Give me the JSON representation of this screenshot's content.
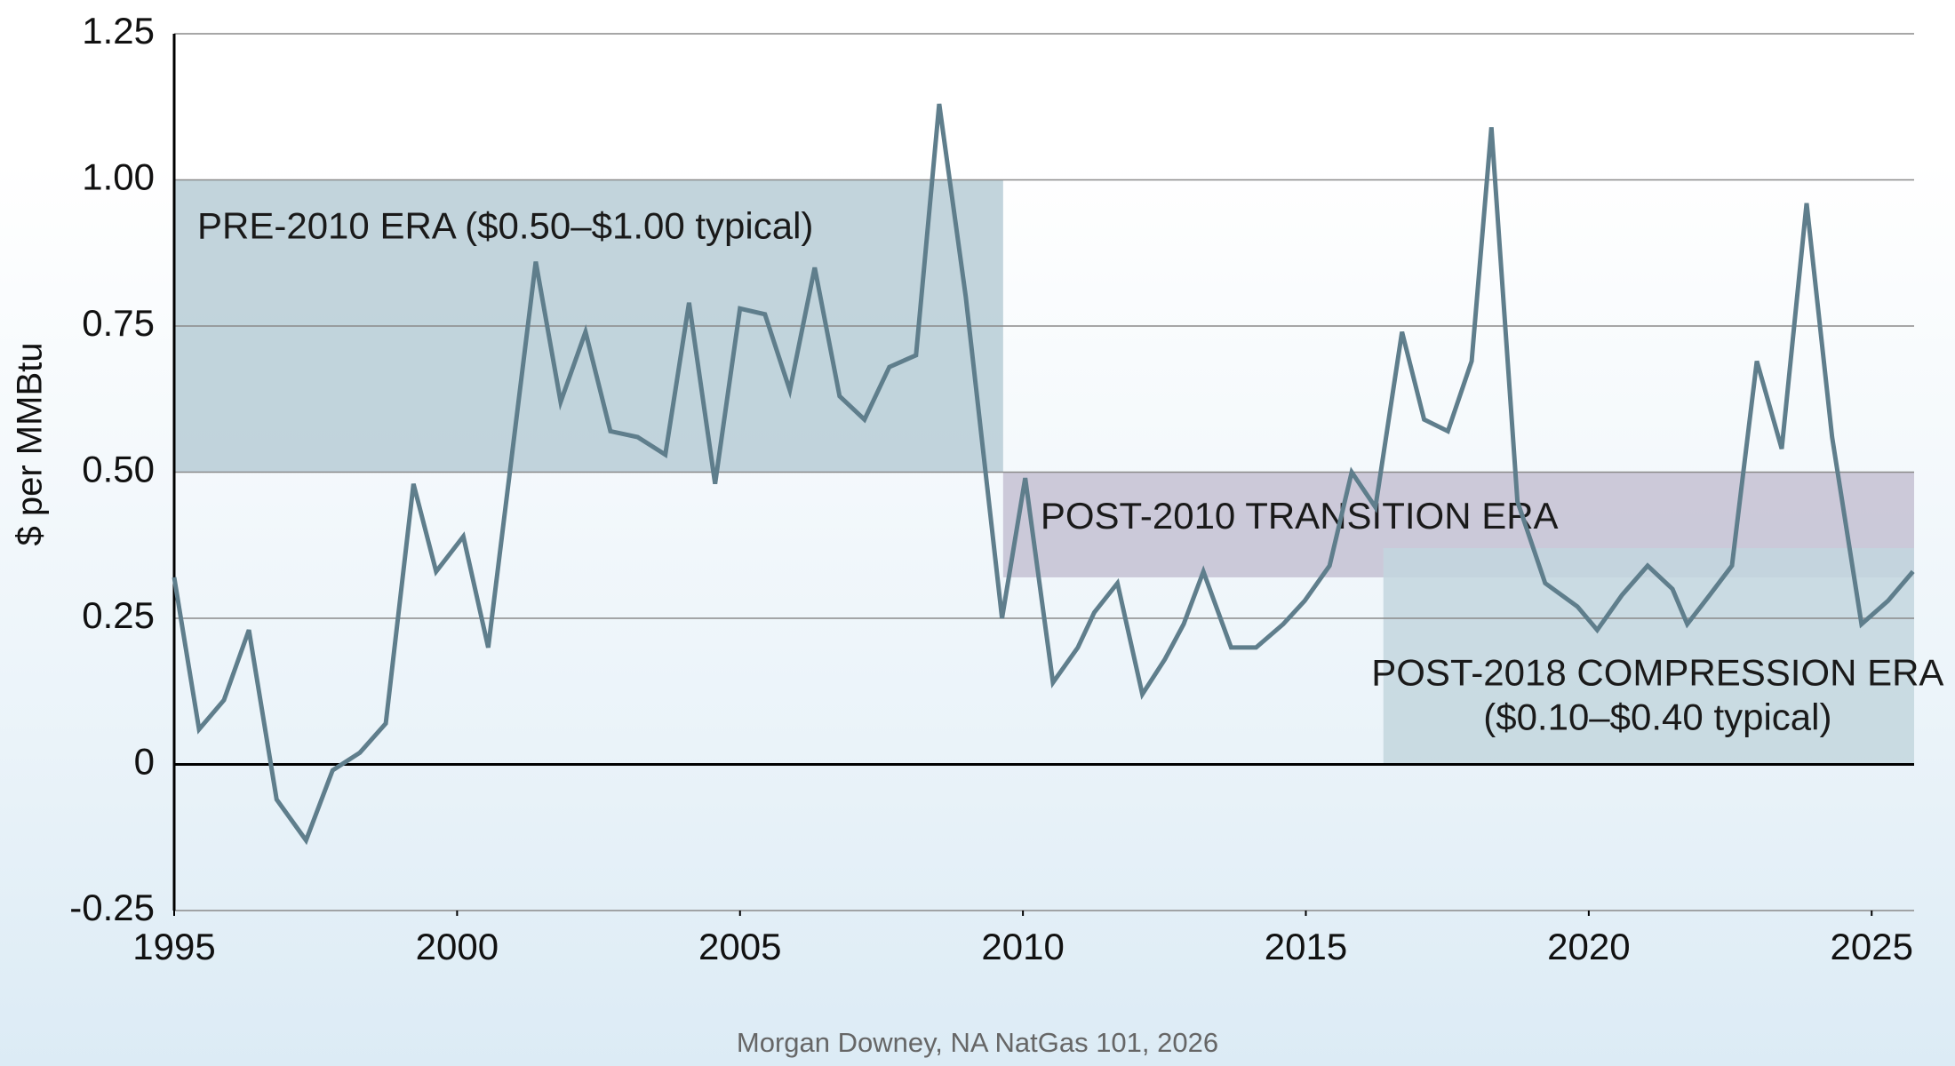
{
  "chart_data": {
    "type": "line",
    "ylabel": "$ per MMBtu",
    "source": "Morgan Downey, NA NatGas 101, 2026",
    "xlim": [
      1995,
      2025.75
    ],
    "xticks": [
      1995,
      2000,
      2005,
      2010,
      2015,
      2020,
      2025
    ],
    "ylim": [
      -0.25,
      1.25
    ],
    "yticks": [
      1.25,
      {
        "value": 1,
        "label": "1.00"
      },
      0.75,
      {
        "value": 0.5,
        "label": "0.50"
      },
      0.25,
      0,
      -0.25
    ],
    "grid": true,
    "bands": [
      {
        "label": [
          "PRE-2010 ERA ($0.50–$1.00 typical)"
        ],
        "x": [
          1995,
          2009.65
        ],
        "y": [
          0.5,
          1
        ],
        "color": "#b7cdd6"
      },
      {
        "label": [
          "POST-2010 TRANSITION ERA"
        ],
        "x": [
          2009.65,
          2025.75
        ],
        "y": [
          0.32,
          0.5
        ],
        "color": "#c4c1d2"
      },
      {
        "label": [
          "POST-2018 COMPRESSION ERA",
          "($0.10–$0.40 typical)"
        ],
        "x": [
          2016.37,
          2025.75
        ],
        "y": [
          0,
          0.37
        ],
        "color": "#c3d6de"
      }
    ],
    "series": [
      {
        "color": "#5f7e8c",
        "x": [
          1995.0,
          1995.44,
          1995.88,
          1996.32,
          1996.81,
          1997.33,
          1997.8,
          1998.28,
          1998.74,
          1999.23,
          1999.63,
          2000.11,
          2000.55,
          2001.39,
          2001.83,
          2002.27,
          2002.71,
          2003.19,
          2003.68,
          2004.1,
          2004.56,
          2005.0,
          2005.44,
          2005.88,
          2006.32,
          2006.76,
          2007.2,
          2007.64,
          2008.11,
          2008.52,
          2008.99,
          2009.63,
          2010.04,
          2010.53,
          2010.97,
          2011.26,
          2011.67,
          2012.11,
          2012.51,
          2012.84,
          2013.19,
          2013.68,
          2014.12,
          2014.6,
          2014.98,
          2015.42,
          2015.81,
          2016.23,
          2016.7,
          2017.09,
          2017.51,
          2017.93,
          2018.28,
          2018.74,
          2019.23,
          2019.8,
          2020.15,
          2020.59,
          2021.04,
          2021.48,
          2021.74,
          2022.14,
          2022.53,
          2022.97,
          2023.41,
          2023.85,
          2024.3,
          2024.82,
          2025.29,
          2025.73
        ],
        "values": [
          0.32,
          0.06,
          0.11,
          0.23,
          -0.06,
          -0.13,
          -0.01,
          0.02,
          0.07,
          0.48,
          0.33,
          0.39,
          0.2,
          0.86,
          0.62,
          0.74,
          0.57,
          0.56,
          0.53,
          0.79,
          0.48,
          0.78,
          0.77,
          0.64,
          0.85,
          0.63,
          0.59,
          0.68,
          0.7,
          1.13,
          0.8,
          0.25,
          0.49,
          0.14,
          0.2,
          0.26,
          0.31,
          0.12,
          0.18,
          0.24,
          0.33,
          0.2,
          0.2,
          0.24,
          0.28,
          0.34,
          0.5,
          0.44,
          0.74,
          0.59,
          0.57,
          0.69,
          1.09,
          0.45,
          0.31,
          0.27,
          0.23,
          0.29,
          0.34,
          0.3,
          0.24,
          0.29,
          0.34,
          0.69,
          0.54,
          0.96,
          0.56,
          0.24,
          0.28,
          0.33
        ]
      }
    ]
  }
}
